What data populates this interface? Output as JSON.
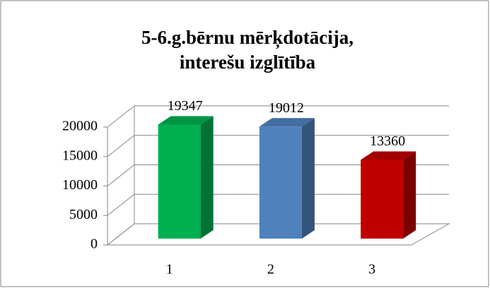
{
  "chart_data": {
    "type": "bar3d",
    "title": [
      "5-6.g.bērnu mērķdotācija,",
      "interešu izglītība"
    ],
    "categories": [
      "1",
      "2",
      "3"
    ],
    "values": [
      19347,
      19012,
      13360
    ],
    "colors": [
      "#00b050",
      "#4f81bd",
      "#c00000"
    ],
    "ylim": [
      0,
      20000
    ],
    "yticks": [
      0,
      5000,
      10000,
      15000,
      20000
    ],
    "grid": true
  }
}
